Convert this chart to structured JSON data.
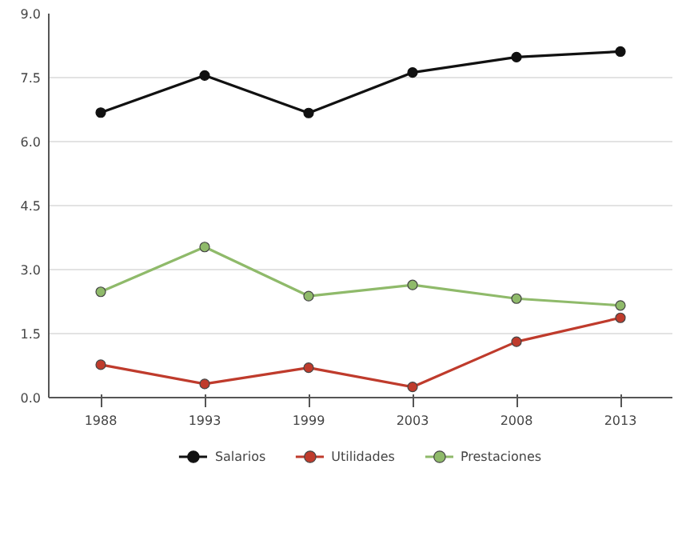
{
  "chart_data": {
    "type": "line",
    "categories": [
      "1988",
      "1993",
      "1999",
      "2003",
      "2008",
      "2013"
    ],
    "series": [
      {
        "name": "Salarios",
        "color": "#111111",
        "values": [
          6.68,
          7.55,
          6.67,
          7.62,
          7.98,
          8.11
        ]
      },
      {
        "name": "Utilidades",
        "color": "#bf3b2c",
        "values": [
          0.77,
          0.32,
          0.7,
          0.25,
          1.31,
          1.87
        ]
      },
      {
        "name": "Prestaciones",
        "color": "#8fba6a",
        "values": [
          2.48,
          3.53,
          2.38,
          2.64,
          2.32,
          2.16
        ]
      }
    ],
    "ylim": [
      0,
      9
    ],
    "yticks": [
      {
        "value": 0,
        "label": "0.0"
      },
      {
        "value": 1.5,
        "label": "1.5"
      },
      {
        "value": 3,
        "label": "3.0"
      },
      {
        "value": 4.5,
        "label": "4.5"
      },
      {
        "value": 6,
        "label": "6.0"
      },
      {
        "value": 7.5,
        "label": "7.5"
      },
      {
        "value": 9,
        "label": "9.0"
      }
    ],
    "grid": "y",
    "legend": "bottom",
    "marker": "circle",
    "line_style": "solid"
  }
}
